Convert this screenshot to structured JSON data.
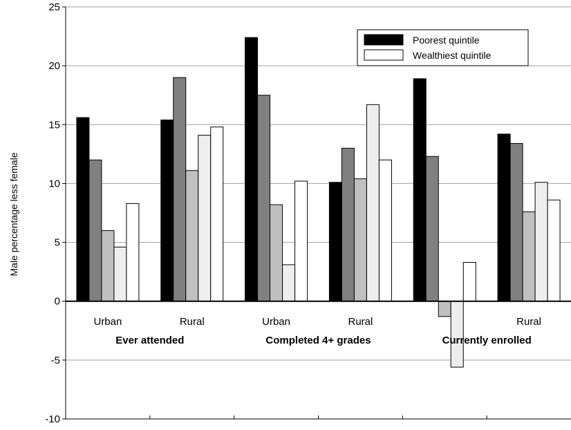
{
  "chart_data": {
    "type": "bar",
    "ylabel": "Male percentage less female",
    "ylim": [
      -10,
      25
    ],
    "yticks": [
      -10,
      -5,
      0,
      5,
      10,
      15,
      20,
      25
    ],
    "grid": true,
    "legend_position": "top-right",
    "legend": [
      "Poorest quintile",
      "Wealthiest quintile"
    ],
    "category_labels": [
      "Urban",
      "Rural",
      "Urban",
      "Rural",
      "",
      "Rural"
    ],
    "group_labels": [
      "Ever attended",
      "Completed 4+ grades",
      "Currently enrolled"
    ],
    "series": [
      {
        "values": [
          15.6,
          15.4,
          22.4,
          10.1,
          18.9,
          14.2
        ]
      },
      {
        "values": [
          12.0,
          19.0,
          17.5,
          13.0,
          12.3,
          13.4
        ]
      },
      {
        "values": [
          6.0,
          11.1,
          8.2,
          10.4,
          -1.3,
          7.6
        ]
      },
      {
        "values": [
          4.6,
          14.1,
          3.1,
          16.7,
          -5.6,
          10.1
        ]
      },
      {
        "values": [
          8.3,
          14.8,
          10.2,
          12.0,
          3.3,
          8.6
        ]
      }
    ],
    "colors": {
      "series": [
        "#000000",
        "#808080",
        "#c0c0c0",
        "#eeeeee",
        "#ffffff"
      ],
      "grid": "#a0a0a0",
      "axis": "#000000"
    }
  }
}
